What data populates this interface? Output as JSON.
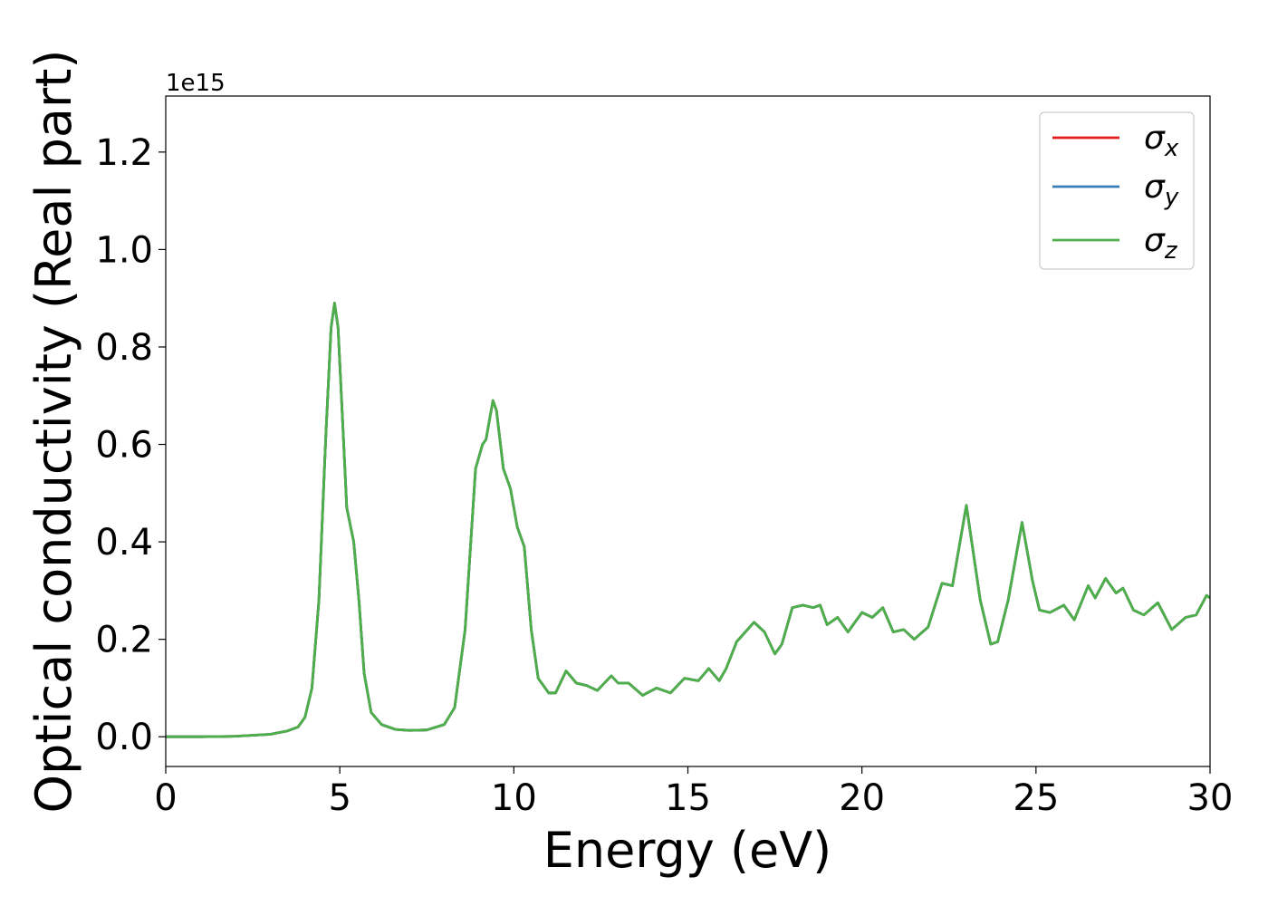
{
  "chart_data": {
    "type": "line",
    "xlabel": "Energy (eV)",
    "ylabel": "Optical conductivity (Real part)",
    "y_offset_label": "1e15",
    "x": [
      0,
      1,
      2,
      3,
      3.5,
      3.8,
      4.0,
      4.2,
      4.4,
      4.6,
      4.75,
      4.85,
      4.95,
      5.1,
      5.2,
      5.4,
      5.55,
      5.7,
      5.9,
      6.2,
      6.6,
      7.0,
      7.5,
      8.0,
      8.3,
      8.6,
      8.9,
      9.1,
      9.2,
      9.4,
      9.5,
      9.7,
      9.9,
      10.1,
      10.3,
      10.5,
      10.7,
      11.0,
      11.2,
      11.5,
      11.8,
      12.1,
      12.4,
      12.8,
      13.0,
      13.3,
      13.7,
      14.1,
      14.5,
      14.9,
      15.3,
      15.6,
      15.9,
      16.1,
      16.4,
      16.9,
      17.2,
      17.5,
      17.7,
      18.0,
      18.3,
      18.6,
      18.8,
      19.0,
      19.3,
      19.6,
      20.0,
      20.3,
      20.6,
      20.9,
      21.2,
      21.5,
      21.9,
      22.3,
      22.6,
      23.0,
      23.4,
      23.7,
      23.9,
      24.2,
      24.6,
      24.9,
      25.1,
      25.4,
      25.8,
      26.1,
      26.5,
      26.7,
      27.0,
      27.3,
      27.5,
      27.8,
      28.1,
      28.5,
      28.9,
      29.3,
      29.6,
      29.9,
      30.0
    ],
    "series": [
      {
        "name": "σx",
        "color": "#e41a1c",
        "values": [
          0,
          0,
          0.001,
          0.005,
          0.012,
          0.02,
          0.04,
          0.1,
          0.28,
          0.62,
          0.84,
          0.89,
          0.84,
          0.62,
          0.47,
          0.4,
          0.28,
          0.13,
          0.05,
          0.025,
          0.015,
          0.013,
          0.014,
          0.025,
          0.06,
          0.22,
          0.55,
          0.6,
          0.61,
          0.69,
          0.67,
          0.55,
          0.51,
          0.43,
          0.39,
          0.22,
          0.12,
          0.09,
          0.09,
          0.135,
          0.11,
          0.105,
          0.095,
          0.125,
          0.11,
          0.11,
          0.085,
          0.1,
          0.09,
          0.12,
          0.115,
          0.14,
          0.115,
          0.14,
          0.195,
          0.235,
          0.215,
          0.17,
          0.19,
          0.265,
          0.27,
          0.265,
          0.27,
          0.23,
          0.245,
          0.215,
          0.255,
          0.245,
          0.265,
          0.215,
          0.22,
          0.2,
          0.225,
          0.315,
          0.31,
          0.475,
          0.28,
          0.19,
          0.195,
          0.28,
          0.44,
          0.32,
          0.26,
          0.255,
          0.27,
          0.24,
          0.31,
          0.285,
          0.325,
          0.295,
          0.305,
          0.26,
          0.25,
          0.275,
          0.22,
          0.245,
          0.25,
          0.29,
          0.285
        ]
      },
      {
        "name": "σy",
        "color": "#377eb8",
        "values": [
          0,
          0,
          0.001,
          0.005,
          0.012,
          0.02,
          0.04,
          0.1,
          0.28,
          0.62,
          0.84,
          0.89,
          0.84,
          0.62,
          0.47,
          0.4,
          0.28,
          0.13,
          0.05,
          0.025,
          0.015,
          0.013,
          0.014,
          0.025,
          0.06,
          0.22,
          0.55,
          0.6,
          0.61,
          0.69,
          0.67,
          0.55,
          0.51,
          0.43,
          0.39,
          0.22,
          0.12,
          0.09,
          0.09,
          0.135,
          0.11,
          0.105,
          0.095,
          0.125,
          0.11,
          0.11,
          0.085,
          0.1,
          0.09,
          0.12,
          0.115,
          0.14,
          0.115,
          0.14,
          0.195,
          0.235,
          0.215,
          0.17,
          0.19,
          0.265,
          0.27,
          0.265,
          0.27,
          0.23,
          0.245,
          0.215,
          0.255,
          0.245,
          0.265,
          0.215,
          0.22,
          0.2,
          0.225,
          0.315,
          0.31,
          0.475,
          0.28,
          0.19,
          0.195,
          0.28,
          0.44,
          0.32,
          0.26,
          0.255,
          0.27,
          0.24,
          0.31,
          0.285,
          0.325,
          0.295,
          0.305,
          0.26,
          0.25,
          0.275,
          0.22,
          0.245,
          0.25,
          0.29,
          0.285
        ]
      },
      {
        "name": "σz",
        "color": "#4daf4a",
        "values": [
          0,
          0,
          0.001,
          0.005,
          0.012,
          0.02,
          0.04,
          0.1,
          0.28,
          0.62,
          0.84,
          0.89,
          0.84,
          0.62,
          0.47,
          0.4,
          0.28,
          0.13,
          0.05,
          0.025,
          0.015,
          0.013,
          0.014,
          0.025,
          0.06,
          0.22,
          0.55,
          0.6,
          0.61,
          0.69,
          0.67,
          0.55,
          0.51,
          0.43,
          0.39,
          0.22,
          0.12,
          0.09,
          0.09,
          0.135,
          0.11,
          0.105,
          0.095,
          0.125,
          0.11,
          0.11,
          0.085,
          0.1,
          0.09,
          0.12,
          0.115,
          0.14,
          0.115,
          0.14,
          0.195,
          0.235,
          0.215,
          0.17,
          0.19,
          0.265,
          0.27,
          0.265,
          0.27,
          0.23,
          0.245,
          0.215,
          0.255,
          0.245,
          0.265,
          0.215,
          0.22,
          0.2,
          0.225,
          0.315,
          0.31,
          0.475,
          0.28,
          0.19,
          0.195,
          0.28,
          0.44,
          0.32,
          0.26,
          0.255,
          0.27,
          0.24,
          0.31,
          0.285,
          0.325,
          0.295,
          0.305,
          0.26,
          0.25,
          0.275,
          0.22,
          0.245,
          0.25,
          0.29,
          0.285
        ]
      }
    ],
    "xlim": [
      0,
      30
    ],
    "xticks": [
      0,
      5,
      10,
      15,
      20,
      25,
      30
    ],
    "ylim": [
      -0.061,
      1.315
    ],
    "yticks": [
      {
        "value": 0,
        "label": "0.0"
      },
      0.2,
      0.4,
      0.6,
      0.8,
      {
        "value": 1,
        "label": "1.0"
      },
      1.2
    ],
    "grid": false,
    "legend": "upper right"
  }
}
